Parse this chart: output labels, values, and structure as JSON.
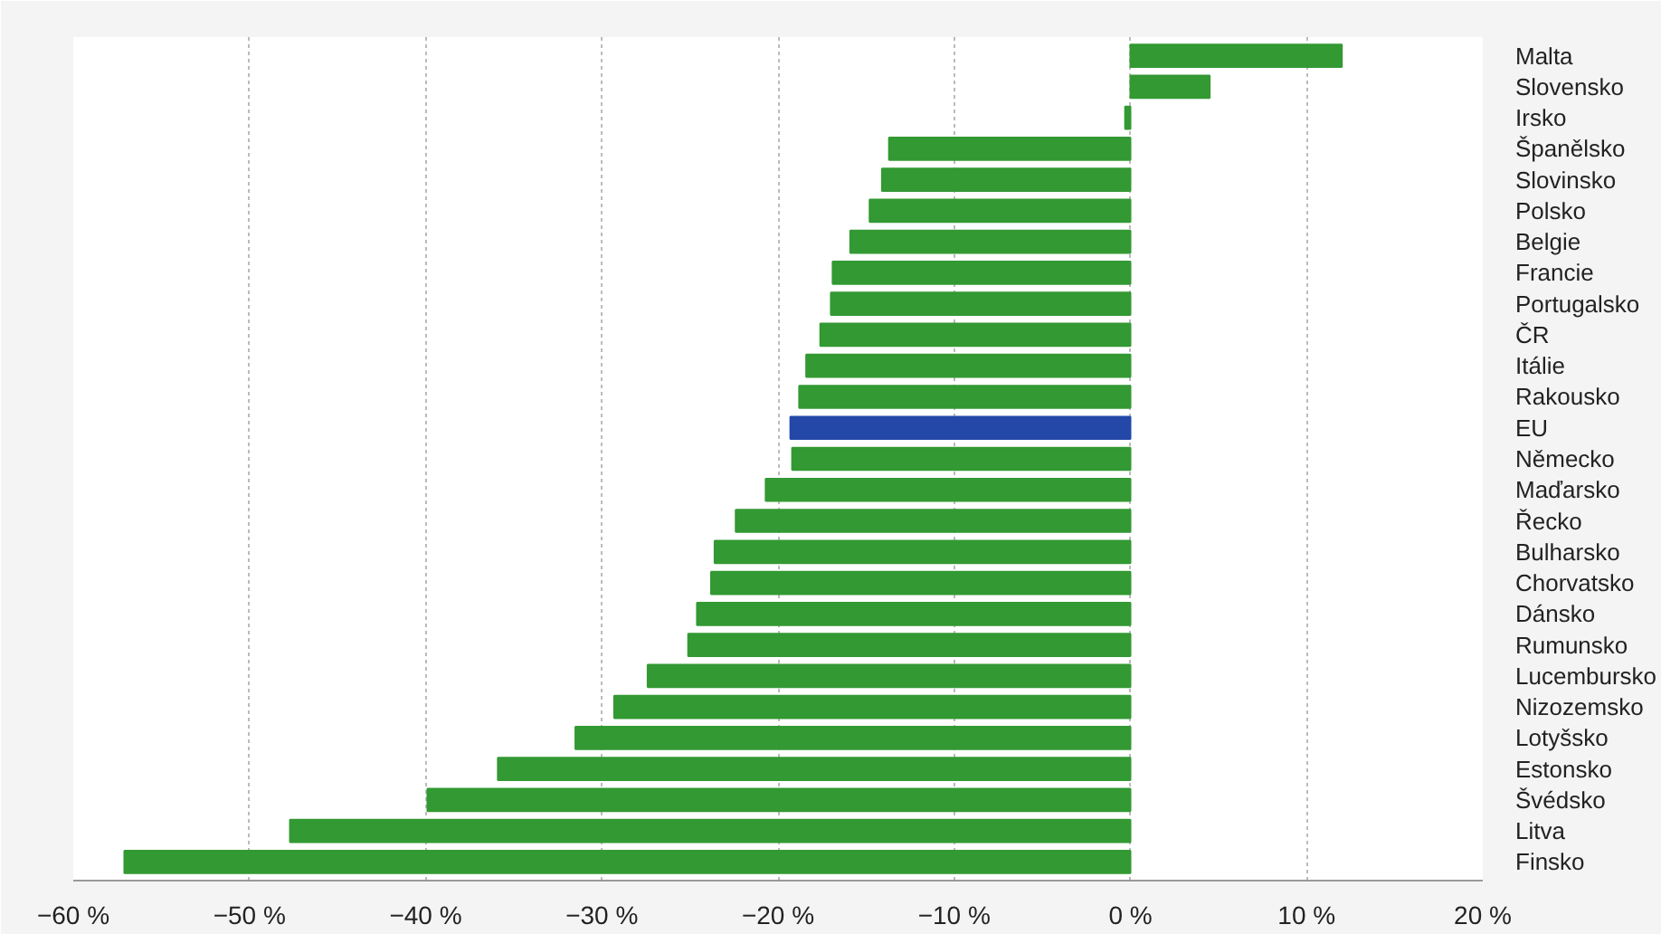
{
  "chart_data": {
    "type": "bar",
    "orientation": "horizontal",
    "categories": [
      "Malta",
      "Slovensko",
      "Irsko",
      "Španělsko",
      "Slovinsko",
      "Polsko",
      "Belgie",
      "Francie",
      "Portugalsko",
      "ČR",
      "Itálie",
      "Rakousko",
      "EU",
      "Německo",
      "Maďarsko",
      "Řecko",
      "Bulharsko",
      "Chorvatsko",
      "Dánsko",
      "Rumunsko",
      "Lucembursko",
      "Nizozemsko",
      "Lotyšsko",
      "Estonsko",
      "Švédsko",
      "Litva",
      "Finsko"
    ],
    "values": [
      12.0,
      4.5,
      -0.3,
      -13.7,
      -14.1,
      -14.8,
      -15.9,
      -16.9,
      -17.0,
      -17.6,
      -18.4,
      -18.8,
      -19.3,
      -19.2,
      -20.7,
      -22.4,
      -23.6,
      -23.8,
      -24.6,
      -25.1,
      -27.4,
      -29.3,
      -31.5,
      -35.9,
      -39.9,
      -47.7,
      -57.1
    ],
    "colors": [
      "#339933",
      "#339933",
      "#339933",
      "#339933",
      "#339933",
      "#339933",
      "#339933",
      "#339933",
      "#339933",
      "#339933",
      "#339933",
      "#339933",
      "#2348a8",
      "#339933",
      "#339933",
      "#339933",
      "#339933",
      "#339933",
      "#339933",
      "#339933",
      "#339933",
      "#339933",
      "#339933",
      "#339933",
      "#339933",
      "#339933",
      "#339933"
    ],
    "xlim": [
      -60,
      20
    ],
    "xticks": [
      {
        "value": -60,
        "label": "−60 %"
      },
      {
        "value": -50,
        "label": "−50 %"
      },
      {
        "value": -40,
        "label": "−40 %"
      },
      {
        "value": -30,
        "label": "−30 %"
      },
      {
        "value": -20,
        "label": "−20 %"
      },
      {
        "value": -10,
        "label": "−10 %"
      },
      {
        "value": 0,
        "label": "0 %"
      },
      {
        "value": 10,
        "label": "10 %"
      },
      {
        "value": 20,
        "label": "20 %"
      }
    ],
    "grid": "x"
  }
}
